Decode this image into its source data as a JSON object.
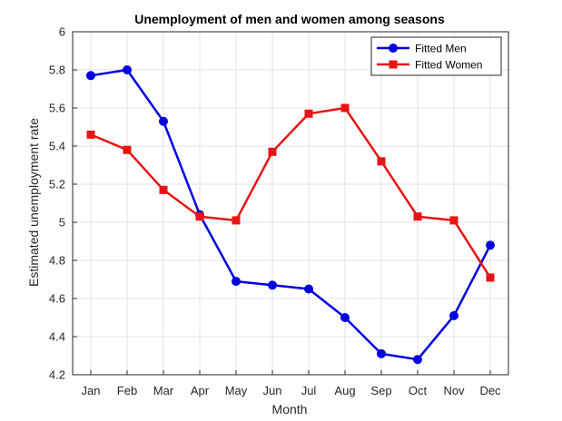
{
  "chart_data": {
    "type": "line",
    "title": "Unemployment of men and women among seasons",
    "xlabel": "Month",
    "ylabel": "Estimated unemployment rate",
    "categories": [
      "Jan",
      "Feb",
      "Mar",
      "Apr",
      "May",
      "Jun",
      "Jul",
      "Aug",
      "Sep",
      "Oct",
      "Nov",
      "Dec"
    ],
    "ylim": [
      4.2,
      6.0
    ],
    "yticks": [
      "4.2",
      "4.4",
      "4.6",
      "4.8",
      "5",
      "5.2",
      "5.4",
      "5.6",
      "5.8",
      "6"
    ],
    "grid": true,
    "legend_position": "top-right",
    "series": [
      {
        "name": "Fitted Men",
        "color": "#0000e0",
        "marker": "circle",
        "values": [
          5.77,
          5.8,
          5.53,
          5.04,
          4.69,
          4.67,
          4.65,
          4.5,
          4.31,
          4.28,
          4.51,
          4.88
        ]
      },
      {
        "name": "Fitted Women",
        "color": "#e81414",
        "marker": "square",
        "values": [
          5.46,
          5.38,
          5.17,
          5.03,
          5.01,
          5.37,
          5.57,
          5.6,
          5.32,
          5.03,
          5.01,
          4.71
        ]
      }
    ]
  }
}
